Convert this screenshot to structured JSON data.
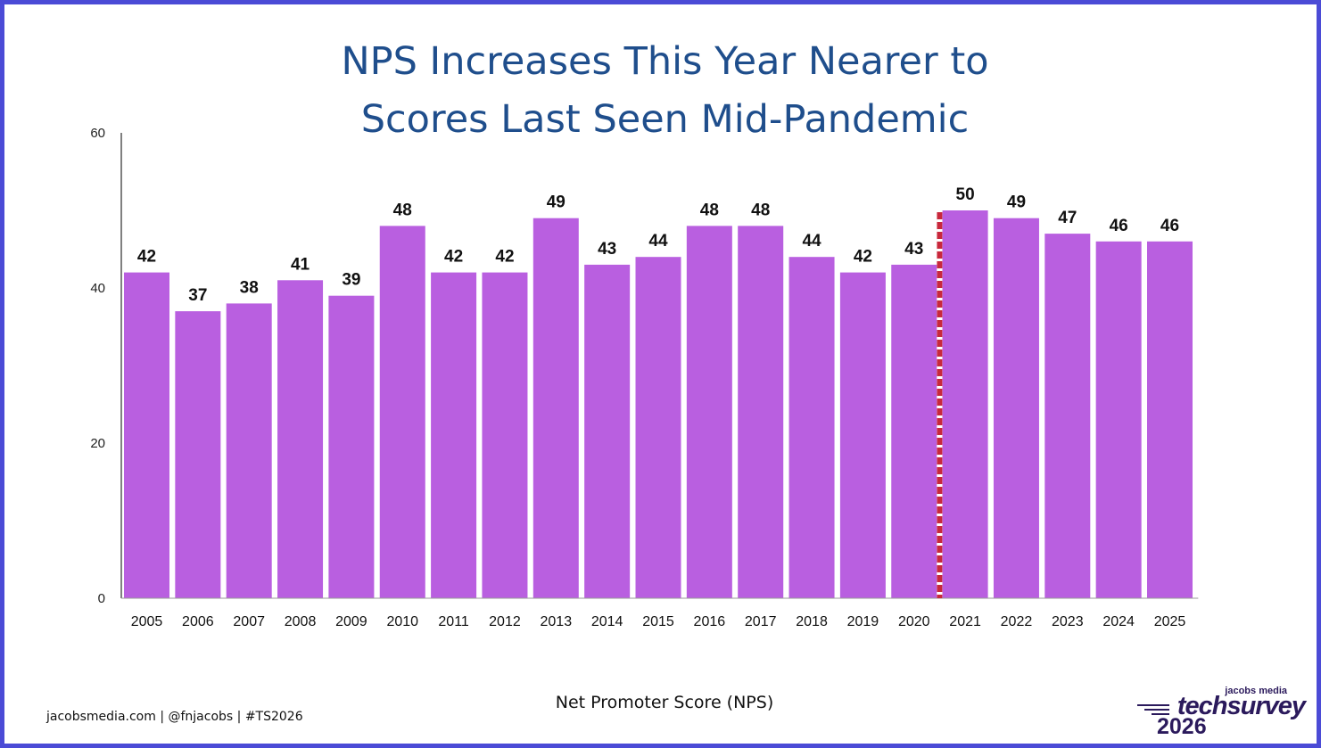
{
  "title": {
    "line1": "NPS Increases This Year Nearer to",
    "line2": "Scores Last Seen Mid-Pandemic"
  },
  "chart_data": {
    "type": "bar",
    "categories": [
      "2005",
      "2006",
      "2007",
      "2008",
      "2009",
      "2010",
      "2011",
      "2012",
      "2013",
      "2014",
      "2015",
      "2016",
      "2017",
      "2018",
      "2019",
      "2020",
      "2021",
      "2022",
      "2023",
      "2024",
      "2025"
    ],
    "values": [
      42,
      37,
      38,
      41,
      39,
      48,
      42,
      42,
      49,
      43,
      44,
      48,
      48,
      44,
      42,
      43,
      50,
      49,
      47,
      46,
      46
    ],
    "xlabel": "Net Promoter Score (NPS)",
    "ylabel": "",
    "ylim": [
      0,
      60
    ],
    "yticks": [
      0,
      20,
      40,
      60
    ],
    "grid": false,
    "bar_color": "#b95fe0",
    "divider": {
      "between": [
        "2020",
        "2021"
      ],
      "style": "dashed",
      "color": "#c8283c"
    }
  },
  "footer": {
    "links": "jacobsmedia.com  |  @fnjacobs  |  #TS2026"
  },
  "logo": {
    "brand": "jacobs media",
    "product": "techsurvey",
    "year": "2026"
  },
  "colors": {
    "border": "#4b4bd6",
    "title": "#1f4e8c",
    "bar": "#b95fe0",
    "divider": "#c8283c",
    "logo": "#2b1a5c"
  }
}
